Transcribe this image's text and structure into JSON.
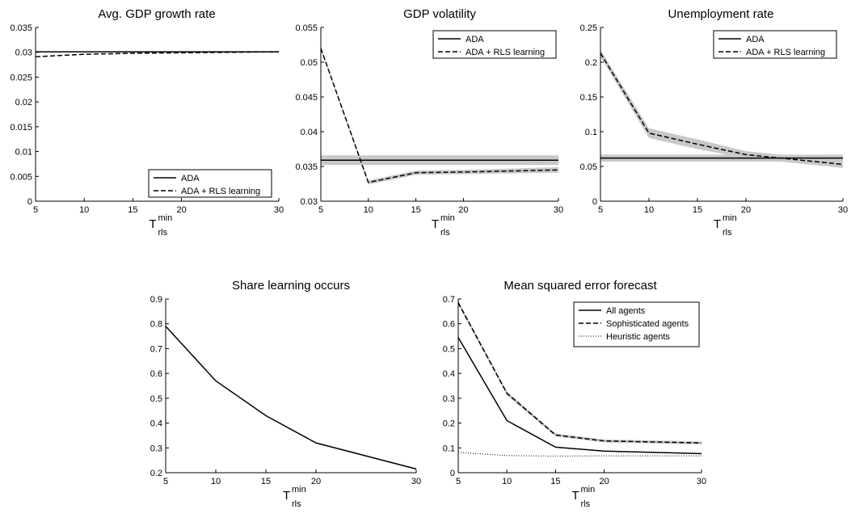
{
  "chart_data": [
    {
      "type": "line",
      "title": "Avg. GDP growth rate",
      "xlabel": "T",
      "xlabel_sup": "min",
      "xlabel_sub": "rls",
      "x": [
        5,
        10,
        15,
        20,
        30
      ],
      "xticks": [
        "5",
        "10",
        "15",
        "20",
        "30"
      ],
      "ylim": [
        0,
        0.035
      ],
      "yticks": [
        "0",
        "0.005",
        "0.01",
        "0.015",
        "0.02",
        "0.025",
        "0.03",
        "0.035"
      ],
      "legend_position": "bottom-right",
      "series": [
        {
          "name": "ADA",
          "style": "solid",
          "values": [
            0.0301,
            0.0301,
            0.0301,
            0.0301,
            0.0301
          ]
        },
        {
          "name": "ADA + RLS learning",
          "style": "dashed",
          "values": [
            0.0291,
            0.0296,
            0.0298,
            0.0299,
            0.0301
          ]
        }
      ],
      "band_color": "#c8c8c8"
    },
    {
      "type": "line",
      "title": "GDP volatility",
      "xlabel": "T",
      "xlabel_sup": "min",
      "xlabel_sub": "rls",
      "x": [
        5,
        10,
        15,
        20,
        30
      ],
      "xticks": [
        "5",
        "10",
        "15",
        "20",
        "30"
      ],
      "ylim": [
        0.03,
        0.055
      ],
      "yticks": [
        "0.03",
        "0.035",
        "0.04",
        "0.045",
        "0.05",
        "0.055"
      ],
      "legend_position": "top-right",
      "series": [
        {
          "name": "ADA",
          "style": "solid",
          "values": [
            0.0359,
            0.0359,
            0.0359,
            0.0359,
            0.0359
          ],
          "band": [
            0.0007,
            0.0007,
            0.0007,
            0.0007,
            0.0007
          ]
        },
        {
          "name": "ADA + RLS learning",
          "style": "dashed",
          "values": [
            0.052,
            0.0327,
            0.0341,
            0.0342,
            0.0345
          ],
          "band": [
            0.0002,
            0.0003,
            0.0003,
            0.0003,
            0.0004
          ]
        }
      ],
      "band_color": "#c8c8c8"
    },
    {
      "type": "line",
      "title": "Unemployment rate",
      "xlabel": "T",
      "xlabel_sup": "min",
      "xlabel_sub": "rls",
      "x": [
        5,
        10,
        15,
        20,
        30
      ],
      "xticks": [
        "5",
        "10",
        "15",
        "20",
        "30"
      ],
      "ylim": [
        0,
        0.25
      ],
      "yticks": [
        "0",
        "0.05",
        "0.1",
        "0.15",
        "0.2",
        "0.25"
      ],
      "legend_position": "top-right",
      "series": [
        {
          "name": "ADA",
          "style": "solid",
          "values": [
            0.062,
            0.062,
            0.062,
            0.062,
            0.062
          ],
          "band": [
            0.005,
            0.005,
            0.005,
            0.005,
            0.005
          ]
        },
        {
          "name": "ADA + RLS learning",
          "style": "dashed",
          "values": [
            0.213,
            0.098,
            0.082,
            0.067,
            0.053
          ],
          "band": [
            0.005,
            0.007,
            0.007,
            0.005,
            0.005
          ]
        }
      ],
      "band_color": "#c8c8c8"
    },
    {
      "type": "line",
      "title": "Share learning occurs",
      "xlabel": "T",
      "xlabel_sup": "min",
      "xlabel_sub": "rls",
      "x": [
        5,
        10,
        15,
        20,
        30
      ],
      "xticks": [
        "5",
        "10",
        "15",
        "20",
        "30"
      ],
      "ylim": [
        0.2,
        0.9
      ],
      "yticks": [
        "0.2",
        "0.3",
        "0.4",
        "0.5",
        "0.6",
        "0.7",
        "0.8",
        "0.9"
      ],
      "legend_position": "none",
      "series": [
        {
          "name": "",
          "style": "solid",
          "values": [
            0.79,
            0.57,
            0.43,
            0.32,
            0.215
          ]
        }
      ],
      "band_color": "#c8c8c8"
    },
    {
      "type": "line",
      "title": "Mean squared error forecast",
      "xlabel": "T",
      "xlabel_sup": "min",
      "xlabel_sub": "rls",
      "x": [
        5,
        10,
        15,
        20,
        30
      ],
      "xticks": [
        "5",
        "10",
        "15",
        "20",
        "30"
      ],
      "ylim": [
        0,
        0.7
      ],
      "yticks": [
        "0",
        "0.1",
        "0.2",
        "0.3",
        "0.4",
        "0.5",
        "0.6",
        "0.7"
      ],
      "legend_position": "top-right",
      "series": [
        {
          "name": "All agents",
          "style": "solid",
          "values": [
            0.545,
            0.21,
            0.103,
            0.087,
            0.077
          ]
        },
        {
          "name": "Sophisticated agents",
          "style": "dashed",
          "values": [
            0.685,
            0.32,
            0.152,
            0.128,
            0.12
          ],
          "band": [
            0.008,
            0.008,
            0.006,
            0.006,
            0.006
          ]
        },
        {
          "name": "Heuristic agents",
          "style": "dotted",
          "values": [
            0.082,
            0.069,
            0.067,
            0.068,
            0.068
          ]
        }
      ],
      "band_color": "#c8c8c8"
    }
  ]
}
